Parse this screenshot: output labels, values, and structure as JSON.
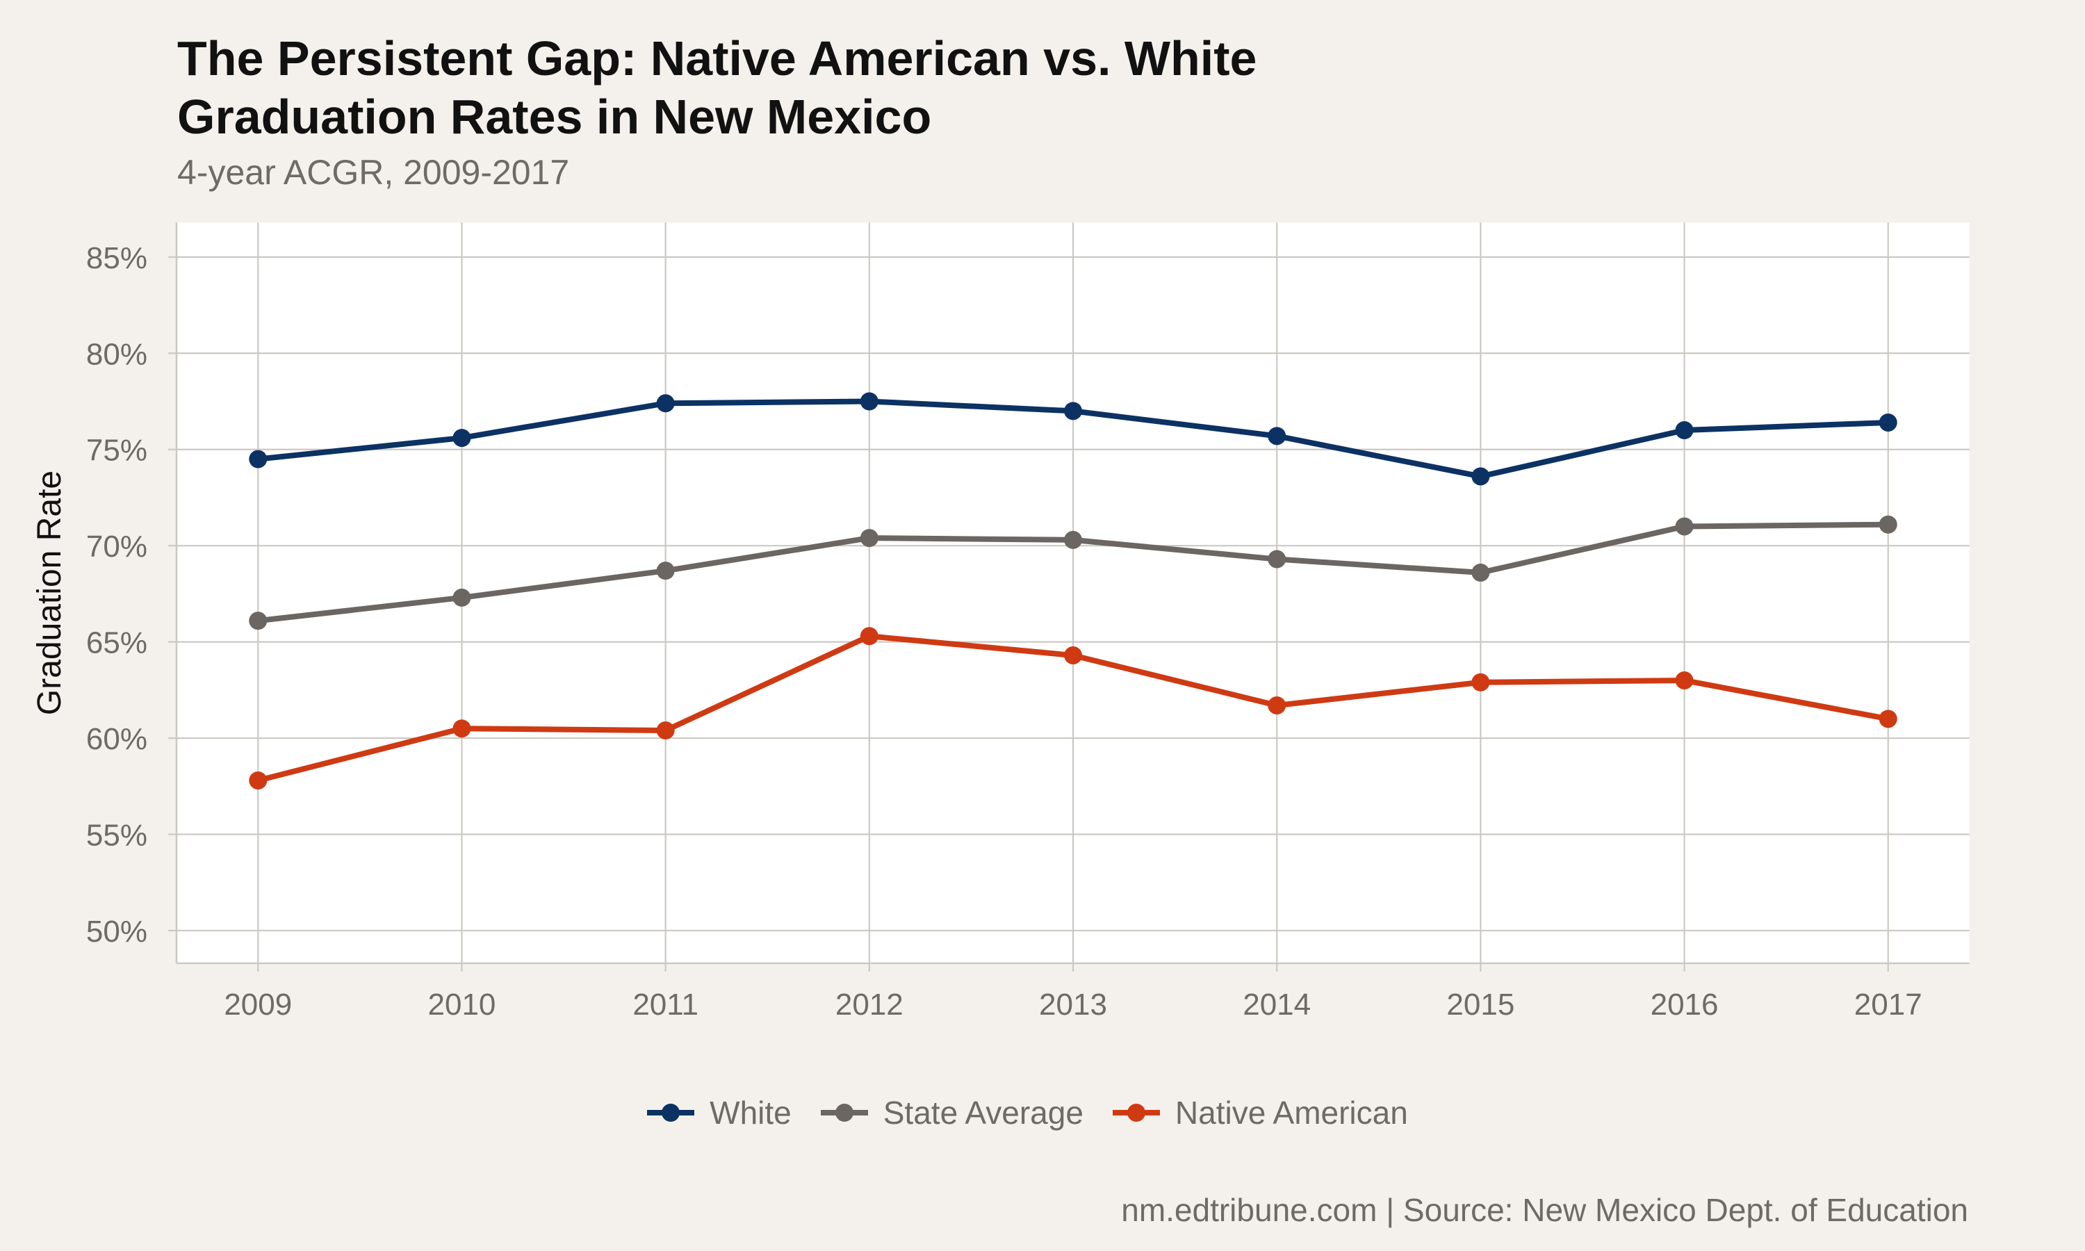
{
  "chart_data": {
    "type": "line",
    "title_lines": [
      "The Persistent Gap: Native American vs. White",
      "Graduation Rates in New Mexico"
    ],
    "subtitle": "4-year ACGR, 2009-2017",
    "xlabel": "",
    "ylabel": "Graduation Rate",
    "x": [
      2009,
      2010,
      2011,
      2012,
      2013,
      2014,
      2015,
      2016,
      2017
    ],
    "x_tick_labels": [
      "2009",
      "2010",
      "2011",
      "2012",
      "2013",
      "2014",
      "2015",
      "2016",
      "2017"
    ],
    "ylim": [
      48.3,
      86.8
    ],
    "y_ticks": [
      50,
      55,
      60,
      65,
      70,
      75,
      80,
      85
    ],
    "y_tick_labels": [
      "50%",
      "55%",
      "60%",
      "65%",
      "70%",
      "75%",
      "80%",
      "85%"
    ],
    "series": [
      {
        "name": "White",
        "color": "#0c3263",
        "values": [
          74.5,
          75.6,
          77.4,
          77.5,
          77.0,
          75.7,
          73.6,
          76.0,
          76.4
        ]
      },
      {
        "name": "State Average",
        "color": "#6b6661",
        "values": [
          66.1,
          67.3,
          68.7,
          70.4,
          70.3,
          69.3,
          68.6,
          71.0,
          71.1
        ]
      },
      {
        "name": "Native American",
        "color": "#cf3a12",
        "values": [
          57.8,
          60.5,
          60.4,
          65.3,
          64.3,
          61.7,
          62.9,
          63.0,
          61.0
        ]
      }
    ],
    "grid": true,
    "legend_position": "bottom",
    "caption": "nm.edtribune.com | Source: New Mexico Dept. of Education"
  },
  "colors": {
    "background": "#f4f1ec",
    "panel": "#ffffff",
    "grid": "#ccc9c4",
    "axis_text": "#6e6a66"
  }
}
